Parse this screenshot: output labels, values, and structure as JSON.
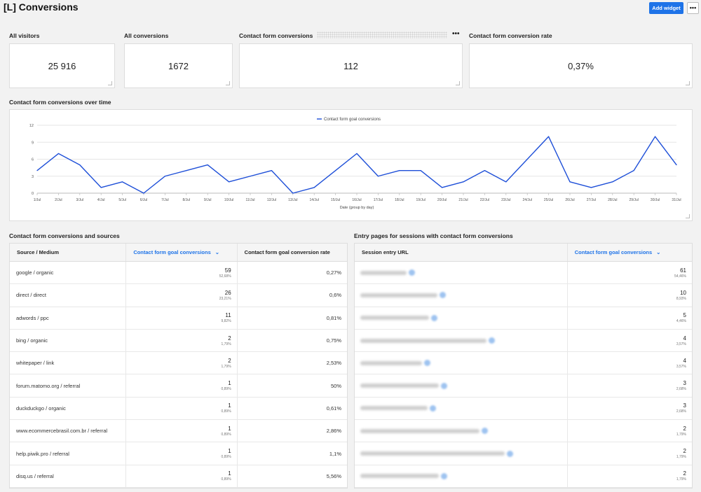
{
  "page": {
    "title": "[L] Conversions",
    "add_widget_label": "Add widget",
    "more_label": "•••"
  },
  "kpis": [
    {
      "label": "All visitors",
      "value": "25 916"
    },
    {
      "label": "All conversions",
      "value": "1672"
    },
    {
      "label": "Contact form conversions",
      "value": "112"
    },
    {
      "label": "Contact form conversion rate",
      "value": "0,37%"
    }
  ],
  "kpi_menu_label": "•••",
  "chart_section": {
    "title": "Contact form conversions over time"
  },
  "chart_data": {
    "type": "line",
    "title": "",
    "xlabel": "Date (group by day)",
    "ylabel": "",
    "ylim": [
      0,
      12
    ],
    "yticks": [
      0,
      3,
      6,
      9,
      12
    ],
    "grid": true,
    "legend_position": "top-center",
    "categories": [
      "1/Jul",
      "2/Jul",
      "3/Jul",
      "4/Jul",
      "5/Jul",
      "6/Jul",
      "7/Jul",
      "8/Jul",
      "9/Jul",
      "10/Jul",
      "11/Jul",
      "12/Jul",
      "13/Jul",
      "14/Jul",
      "15/Jul",
      "16/Jul",
      "17/Jul",
      "18/Jul",
      "19/Jul",
      "20/Jul",
      "21/Jul",
      "22/Jul",
      "23/Jul",
      "24/Jul",
      "25/Jul",
      "26/Jul",
      "27/Jul",
      "28/Jul",
      "29/Jul",
      "30/Jul",
      "31/Jul"
    ],
    "series": [
      {
        "name": "Contact form goal conversions",
        "color": "#1e4fd8",
        "values": [
          4,
          7,
          5,
          1,
          2,
          0,
          3,
          4,
          5,
          2,
          3,
          4,
          0,
          1,
          4,
          7,
          3,
          4,
          4,
          1,
          2,
          4,
          2,
          6,
          10,
          2,
          1,
          2,
          4,
          10,
          5
        ]
      }
    ]
  },
  "sources_section": {
    "title": "Contact form conversions and sources",
    "headers": [
      "Source / Medium",
      "Contact form goal conversions",
      "Contact form goal conversion rate"
    ],
    "sort_icon": "⌄",
    "rows": [
      {
        "label": "google / organic",
        "value": "59",
        "pct": "52,68%",
        "rate": "0,27%"
      },
      {
        "label": "direct / direct",
        "value": "26",
        "pct": "23,21%",
        "rate": "0,6%"
      },
      {
        "label": "adwords / ppc",
        "value": "11",
        "pct": "9,82%",
        "rate": "0,81%"
      },
      {
        "label": "bing / organic",
        "value": "2",
        "pct": "1,79%",
        "rate": "0,75%"
      },
      {
        "label": "whitepaper / link",
        "value": "2",
        "pct": "1,79%",
        "rate": "2,53%"
      },
      {
        "label": "forum.matomo.org / referral",
        "value": "1",
        "pct": "0,89%",
        "rate": "50%"
      },
      {
        "label": "duckduckgo / organic",
        "value": "1",
        "pct": "0,89%",
        "rate": "0,61%"
      },
      {
        "label": "www.ecommercebrasil.com.br / referral",
        "value": "1",
        "pct": "0,89%",
        "rate": "2,86%"
      },
      {
        "label": "help.piwik.pro / referral",
        "value": "1",
        "pct": "0,89%",
        "rate": "1,1%"
      },
      {
        "label": "disq.us / referral",
        "value": "1",
        "pct": "0,89%",
        "rate": "5,56%"
      }
    ]
  },
  "entry_section": {
    "title": "Entry pages for sessions with contact form conversions",
    "headers": [
      "Session entry URL",
      "Contact form goal conversions"
    ],
    "sort_icon": "⌄",
    "rows": [
      {
        "value": "61",
        "pct": "54,46%"
      },
      {
        "value": "10",
        "pct": "8,93%"
      },
      {
        "value": "5",
        "pct": "4,46%"
      },
      {
        "value": "4",
        "pct": "3,57%"
      },
      {
        "value": "4",
        "pct": "3,57%"
      },
      {
        "value": "3",
        "pct": "2,68%"
      },
      {
        "value": "3",
        "pct": "2,68%"
      },
      {
        "value": "2",
        "pct": "1,79%"
      },
      {
        "value": "2",
        "pct": "1,79%"
      },
      {
        "value": "2",
        "pct": "1,79%"
      }
    ]
  }
}
